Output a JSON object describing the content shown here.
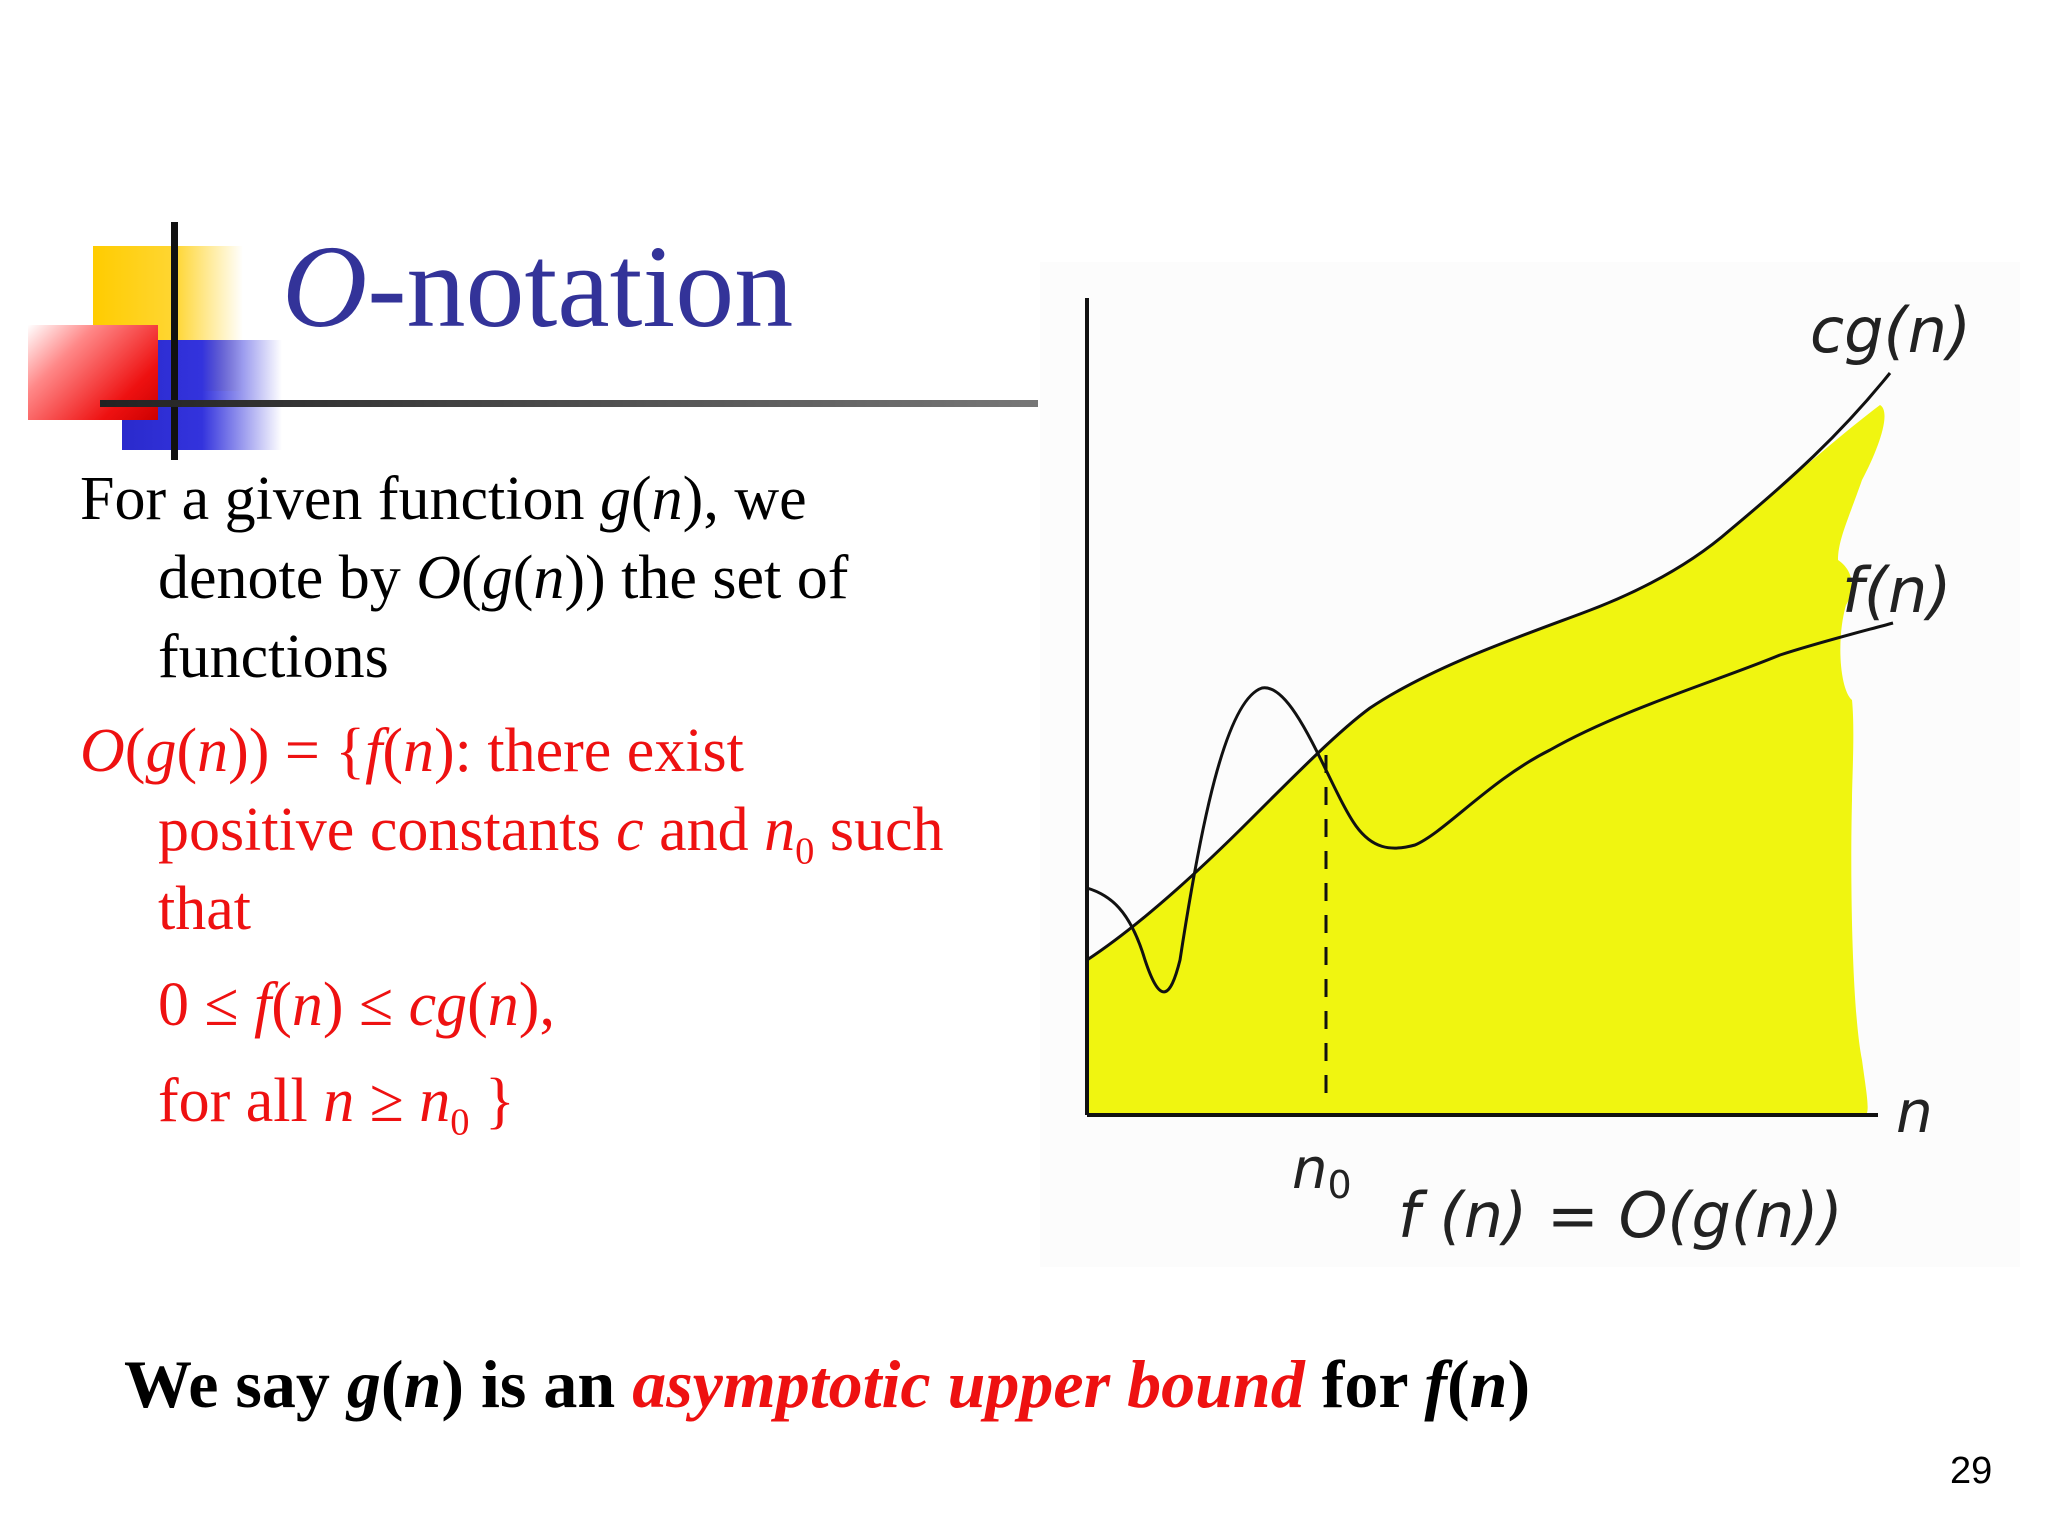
{
  "title": {
    "prefix": "O",
    "rest": "-notation"
  },
  "definition": {
    "line1": {
      "t1": "For a given function ",
      "g": "g",
      "t2": "(",
      "n": "n",
      "t3": "), we"
    },
    "line2": {
      "t1": "denote by ",
      "O": "O",
      "t2": "(",
      "g": "g",
      "t3": "(",
      "n": "n",
      "t4": ")) the set of"
    },
    "line3": {
      "t1": "functions"
    }
  },
  "set_definition": {
    "line1": {
      "O": "O",
      "t1": "(",
      "g": "g",
      "t2": "(",
      "n": "n",
      "t3": ")) = {",
      "f": "f",
      "t4": "(",
      "n2": "n",
      "t5": "): there exist"
    },
    "line2": {
      "t1": "positive constants ",
      "c": "c",
      "t2": " and ",
      "n": "n",
      "sub": "0",
      "t3": " such"
    },
    "line3": {
      "t1": "that"
    },
    "line4": {
      "t1": "0 ≤ ",
      "f": "f",
      "t2": "(",
      "n": "n",
      "t3": ") ≤ ",
      "cg": "cg",
      "t4": "(",
      "n2": "n",
      "t5": "),"
    },
    "line5": {
      "t1": "for all ",
      "n": "n",
      "t2": " ≥ ",
      "n0": "n",
      "sub": "0",
      "t3": " }"
    }
  },
  "figure": {
    "curve_labels": {
      "cg": "cg(n)",
      "f": "f(n)"
    },
    "axis_label_x": "n",
    "n0_label": "n",
    "n0_sub": "0",
    "equation": "f (n) = O(g(n))",
    "colors": {
      "fill": "#f0f510",
      "curve": "#111111",
      "axis": "#111111"
    }
  },
  "conclusion": {
    "t1": "We say ",
    "g": "g",
    "t2": "(",
    "n": "n",
    "t3": ") is an ",
    "emphasis": "asymptotic upper bound",
    "t4": " for ",
    "f": "f",
    "t5": "(",
    "n2": "n",
    "t6": ")"
  },
  "page_number": "29",
  "colors": {
    "title": "#333399",
    "definition_red": "#ee1111"
  }
}
